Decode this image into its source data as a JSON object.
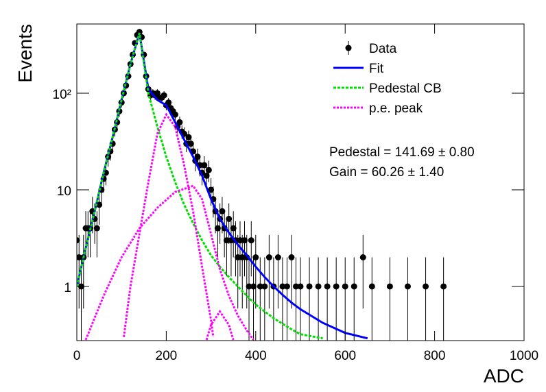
{
  "chart_data": {
    "type": "scatter",
    "x_label": "ADC",
    "y_label": "Events",
    "log_y": true,
    "xlim": [
      0,
      1000
    ],
    "ylim": [
      0.275,
      520
    ],
    "xticks": [
      0,
      200,
      400,
      600,
      800,
      1000
    ],
    "yticks": [
      1,
      10,
      {
        "value": 100,
        "label": "10²"
      }
    ],
    "legend": "top-right",
    "annotations": [
      "Pedestal = 141.69 ± 0.80",
      "Gain = 60.26 ± 1.40"
    ],
    "series": [
      {
        "name": "Data",
        "type": "scatter",
        "color": "#000000",
        "x": [
          0,
          5,
          10,
          15,
          20,
          25,
          30,
          35,
          40,
          45,
          50,
          55,
          60,
          65,
          70,
          75,
          80,
          85,
          90,
          95,
          100,
          105,
          110,
          115,
          120,
          125,
          130,
          135,
          140,
          145,
          150,
          155,
          160,
          165,
          170,
          175,
          180,
          185,
          190,
          195,
          200,
          205,
          210,
          215,
          220,
          225,
          230,
          235,
          240,
          245,
          250,
          255,
          260,
          265,
          270,
          275,
          280,
          285,
          290,
          295,
          300,
          305,
          310,
          315,
          320,
          325,
          330,
          335,
          340,
          345,
          350,
          355,
          360,
          365,
          370,
          375,
          380,
          385,
          390,
          395,
          400,
          410,
          420,
          430,
          440,
          450,
          460,
          470,
          480,
          490,
          500,
          520,
          540,
          560,
          580,
          600,
          620,
          640,
          660,
          700,
          740,
          780,
          820
        ],
        "values": [
          3,
          2,
          1,
          2,
          4,
          4,
          4,
          6,
          5,
          4,
          7,
          10,
          13,
          15,
          22,
          25,
          30,
          42,
          50,
          65,
          80,
          100,
          120,
          150,
          200,
          250,
          330,
          400,
          430,
          380,
          250,
          150,
          110,
          95,
          100,
          95,
          100,
          90,
          90,
          95,
          75,
          80,
          70,
          65,
          60,
          45,
          50,
          40,
          38,
          30,
          35,
          30,
          25,
          20,
          22,
          18,
          15,
          18,
          14,
          16,
          10,
          8,
          6,
          4,
          5,
          6,
          4,
          3,
          5,
          3,
          4,
          3,
          2,
          3,
          2,
          3,
          2,
          1,
          3,
          1,
          2,
          1,
          1,
          2,
          1,
          2,
          1,
          1,
          2,
          1,
          1,
          1,
          1,
          1,
          1,
          1,
          1,
          2,
          1,
          1,
          1,
          1,
          1
        ],
        "errors": [
          1.73,
          1.41,
          1,
          1.41,
          2,
          2,
          2,
          2.45,
          2.24,
          2,
          2.65,
          3.16,
          3.61,
          3.87,
          4.69,
          5,
          5.48,
          6.48,
          7.07,
          8.06,
          8.94,
          10,
          10.95,
          12.25,
          14.14,
          15.81,
          18.17,
          20,
          20.74,
          19.49,
          15.81,
          12.25,
          10.49,
          9.75,
          10,
          9.75,
          10,
          9.49,
          9.49,
          9.75,
          8.66,
          8.94,
          8.37,
          8.06,
          7.75,
          6.71,
          7.07,
          6.32,
          6.16,
          5.48,
          5.92,
          5.48,
          5,
          4.47,
          4.69,
          4.24,
          3.87,
          4.24,
          3.74,
          4,
          3.16,
          2.83,
          2.45,
          2,
          2.24,
          2.45,
          2,
          1.73,
          2.24,
          1.73,
          2,
          1.73,
          1.41,
          1.73,
          1.41,
          1.73,
          1.41,
          1,
          1.73,
          1,
          1.41,
          1,
          1,
          1.41,
          1,
          1.41,
          1,
          1,
          1.41,
          1,
          1,
          1,
          1,
          1,
          1,
          1,
          1,
          1.41,
          1,
          1,
          1,
          1,
          1
        ]
      },
      {
        "name": "Fit",
        "type": "line",
        "color": "#0000ff",
        "dash": "none",
        "x": [
          0,
          20,
          40,
          60,
          80,
          100,
          120,
          140,
          160,
          180,
          200,
          220,
          240,
          260,
          280,
          300,
          320,
          340,
          360,
          380,
          400,
          420,
          440,
          460,
          480,
          500,
          550,
          600,
          650
        ],
        "values": [
          1,
          2.5,
          6,
          15,
          35,
          85,
          200,
          420,
          110,
          85,
          75,
          50,
          33,
          22,
          14,
          8,
          5,
          3.6,
          2.7,
          2.1,
          1.6,
          1.25,
          1.0,
          0.82,
          0.68,
          0.58,
          0.42,
          0.33,
          0.29
        ]
      },
      {
        "name": "Pedestal CB",
        "type": "line",
        "color": "#00dd00",
        "dash": "4 2",
        "x": [
          0,
          20,
          40,
          60,
          80,
          100,
          120,
          140,
          160,
          180,
          200,
          220,
          240,
          260,
          280,
          300,
          320,
          340,
          360,
          380,
          400,
          420,
          440,
          460,
          480,
          500,
          550
        ],
        "values": [
          1,
          2.5,
          6,
          15,
          35,
          85,
          200,
          420,
          100,
          45,
          22,
          12,
          7,
          4.5,
          3,
          2.1,
          1.6,
          1.25,
          1.0,
          0.8,
          0.65,
          0.55,
          0.47,
          0.41,
          0.36,
          0.32,
          0.29
        ]
      },
      {
        "name": "p.e. peak",
        "type": "line",
        "color": "#ff00ff",
        "dash": "3 2",
        "x": [
          105,
          120,
          140,
          160,
          180,
          200,
          220,
          240,
          260,
          280,
          300,
          305,
          null,
          20,
          60,
          100,
          140,
          180,
          220,
          260,
          280,
          300,
          320,
          340,
          360,
          380,
          395,
          null,
          290,
          300,
          320,
          340,
          350
        ],
        "values": [
          0.3,
          1,
          3.5,
          12,
          38,
          60,
          45,
          18,
          6,
          1.6,
          0.45,
          0.3,
          null,
          0.28,
          0.8,
          2,
          4,
          6.5,
          9.5,
          11,
          8,
          3.5,
          1.5,
          0.8,
          0.5,
          0.35,
          0.28,
          null,
          0.28,
          0.4,
          0.55,
          0.4,
          0.28
        ]
      }
    ]
  }
}
